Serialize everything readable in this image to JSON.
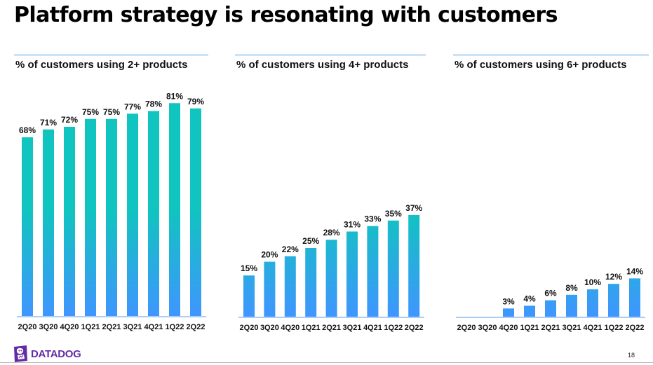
{
  "slide": {
    "title": "Platform strategy is resonating with customers",
    "page_number": "18",
    "logo": {
      "icon": "datadog-dog-icon",
      "text": "DATADOG",
      "color": "#632CA6"
    }
  },
  "colors": {
    "bar_top": "#10C4BF",
    "bar_bottom": "#3F96FF",
    "rule": "#4A9BE8",
    "baseline": "#A9CDF5"
  },
  "chart_data": [
    {
      "type": "bar",
      "title": "% of customers using 2+ products",
      "categories": [
        "2Q20",
        "3Q20",
        "4Q20",
        "1Q21",
        "2Q21",
        "3Q21",
        "4Q21",
        "1Q22",
        "2Q22"
      ],
      "values": [
        68,
        71,
        72,
        75,
        75,
        77,
        78,
        81,
        79
      ],
      "labels": [
        "68%",
        "71%",
        "72%",
        "75%",
        "75%",
        "77%",
        "78%",
        "81%",
        "79%"
      ],
      "unit": "%",
      "xlabel": "",
      "ylabel": "",
      "grid": false,
      "legend": "none"
    },
    {
      "type": "bar",
      "title": "% of customers using 4+ products",
      "categories": [
        "2Q20",
        "3Q20",
        "4Q20",
        "1Q21",
        "2Q21",
        "3Q21",
        "4Q21",
        "1Q22",
        "2Q22"
      ],
      "values": [
        15,
        20,
        22,
        25,
        28,
        31,
        33,
        35,
        37
      ],
      "labels": [
        "15%",
        "20%",
        "22%",
        "25%",
        "28%",
        "31%",
        "33%",
        "35%",
        "37%"
      ],
      "unit": "%",
      "xlabel": "",
      "ylabel": "",
      "grid": false,
      "legend": "none"
    },
    {
      "type": "bar",
      "title": "% of customers using 6+ products",
      "categories": [
        "2Q20",
        "3Q20",
        "4Q20",
        "1Q21",
        "2Q21",
        "3Q21",
        "4Q21",
        "1Q22",
        "2Q22"
      ],
      "values": [
        null,
        null,
        3,
        4,
        6,
        8,
        10,
        12,
        14
      ],
      "labels": [
        "",
        "",
        "3%",
        "4%",
        "6%",
        "8%",
        "10%",
        "12%",
        "14%"
      ],
      "unit": "%",
      "xlabel": "",
      "ylabel": "",
      "grid": false,
      "legend": "none"
    }
  ]
}
